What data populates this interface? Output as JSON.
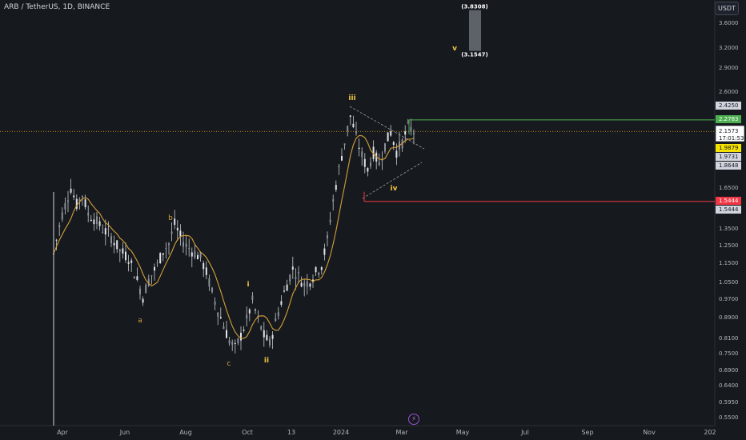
{
  "header": {
    "title": "ARB / TetherUS, 1D, BINANCE"
  },
  "price_axis": {
    "unit_button": "USDT"
  },
  "colors": {
    "background": "#161a1e",
    "candle": "#c8c8c8",
    "moving_average": "#d59f3a",
    "wave_label": "#f5c542",
    "correction_label": "#d59f3a",
    "target_line": "#4caf50",
    "stop_line": "#f23645",
    "current_price_tag": "#f5e100"
  },
  "chart_data": {
    "type": "candlestick",
    "title": "ARB / TetherUS, 1D, BINANCE",
    "x_tick_labels": [
      "Apr",
      "Jun",
      "Aug",
      "Oct",
      "13",
      "2024",
      "Mar",
      "May",
      "Jul",
      "Sep",
      "Nov",
      "202"
    ],
    "y_tick_labels": [
      "3.6000",
      "3.2000",
      "2.9000",
      "2.6000",
      "2.4250",
      "2.2783",
      "2.1573",
      "1.9879",
      "1.9731",
      "1.8648",
      "1.6500",
      "1.5444",
      "1.5444",
      "1.3500",
      "1.2500",
      "1.1500",
      "1.0500",
      "0.9700",
      "0.8900",
      "0.8100",
      "0.7500",
      "0.6900",
      "0.6400",
      "0.5950",
      "0.5500"
    ],
    "y_axis_scale": "log",
    "ylim": [
      0.55,
      4.0
    ],
    "price_tags": {
      "high": "2.4250",
      "target": "2.2783",
      "last_price": "2.1573",
      "countdown": "17:01:53",
      "ma": "1.9879",
      "level_a": "1.9731",
      "level_b": "1.8648",
      "stop_a": "1.5444",
      "stop_b": "1.5444"
    },
    "projection": {
      "top": "(3.8308)",
      "bottom": "(3.1547)",
      "top_value": 3.8308,
      "bottom_value": 3.1547,
      "label": "v"
    },
    "impulse_labels": [
      "i",
      "ii",
      "iii",
      "iv",
      "v"
    ],
    "correction_labels": [
      "a",
      "b",
      "c"
    ],
    "levels": {
      "target": 2.2783,
      "stop": 1.5444,
      "last": 2.1573
    },
    "close_path": [
      [
        0,
        1.2
      ],
      [
        3,
        1.45
      ],
      [
        6,
        1.65
      ],
      [
        8,
        1.52
      ],
      [
        10,
        1.6
      ],
      [
        12,
        1.45
      ],
      [
        14,
        1.42
      ],
      [
        17,
        1.35
      ],
      [
        20,
        1.3
      ],
      [
        23,
        1.22
      ],
      [
        26,
        1.18
      ],
      [
        28,
        1.1
      ],
      [
        31,
        0.98
      ],
      [
        33,
        1.06
      ],
      [
        36,
        1.14
      ],
      [
        38,
        1.22
      ],
      [
        40,
        1.26
      ],
      [
        42,
        1.38
      ],
      [
        44,
        1.3
      ],
      [
        46,
        1.25
      ],
      [
        48,
        1.22
      ],
      [
        51,
        1.18
      ],
      [
        53,
        1.1
      ],
      [
        55,
        1.0
      ],
      [
        57,
        0.92
      ],
      [
        59,
        0.86
      ],
      [
        61,
        0.8
      ],
      [
        63,
        0.77
      ],
      [
        65,
        0.82
      ],
      [
        67,
        0.88
      ],
      [
        69,
        0.96
      ],
      [
        71,
        0.88
      ],
      [
        73,
        0.82
      ],
      [
        75,
        0.79
      ],
      [
        77,
        0.87
      ],
      [
        79,
        0.96
      ],
      [
        81,
        1.04
      ],
      [
        83,
        1.12
      ],
      [
        85,
        1.08
      ],
      [
        87,
        1.04
      ],
      [
        89,
        1.06
      ],
      [
        91,
        1.1
      ],
      [
        93,
        1.14
      ],
      [
        95,
        1.28
      ],
      [
        97,
        1.55
      ],
      [
        99,
        1.8
      ],
      [
        101,
        2.05
      ],
      [
        103,
        2.32
      ],
      [
        105,
        2.1
      ],
      [
        107,
        1.92
      ],
      [
        109,
        1.8
      ],
      [
        111,
        1.95
      ],
      [
        113,
        1.85
      ],
      [
        115,
        2.02
      ],
      [
        117,
        2.15
      ],
      [
        119,
        1.96
      ],
      [
        121,
        2.05
      ],
      [
        123,
        2.2
      ],
      [
        125,
        2.16
      ]
    ]
  }
}
